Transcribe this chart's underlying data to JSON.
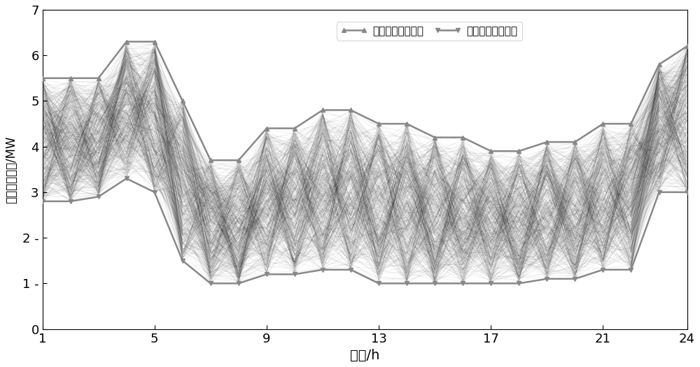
{
  "title": "",
  "xlabel": "时间/h",
  "ylabel": "风电可发功率/MW",
  "xlim": [
    1,
    24
  ],
  "ylim": [
    0,
    7
  ],
  "xticks": [
    1,
    5,
    9,
    13,
    17,
    21,
    24
  ],
  "yticks": [
    0,
    1,
    2,
    3,
    4,
    5,
    6,
    7
  ],
  "ytick_labels": [
    "0",
    "1−",
    "2−",
    "3",
    "4",
    "5",
    "6",
    "7"
  ],
  "upper_bound": [
    5.5,
    5.5,
    5.5,
    6.3,
    6.3,
    5.0,
    3.7,
    3.7,
    4.4,
    4.4,
    4.8,
    4.8,
    4.5,
    4.5,
    4.2,
    4.2,
    3.9,
    3.9,
    4.1,
    4.1,
    4.5,
    4.5,
    5.8,
    6.2
  ],
  "lower_bound": [
    2.8,
    2.8,
    2.9,
    3.3,
    3.0,
    1.5,
    1.0,
    1.0,
    1.2,
    1.2,
    1.3,
    1.3,
    1.0,
    1.0,
    1.0,
    1.0,
    1.0,
    1.0,
    1.1,
    1.1,
    1.3,
    1.3,
    3.0,
    3.0
  ],
  "upper_color": "#888888",
  "lower_color": "#888888",
  "scenario_color": "#1a1a1a",
  "num_scenarios": 500,
  "legend_upper": "风电可发功率上限",
  "legend_lower": "风电可发功率下限",
  "background_color": "#ffffff",
  "figsize": [
    10.0,
    5.25
  ],
  "dpi": 100
}
